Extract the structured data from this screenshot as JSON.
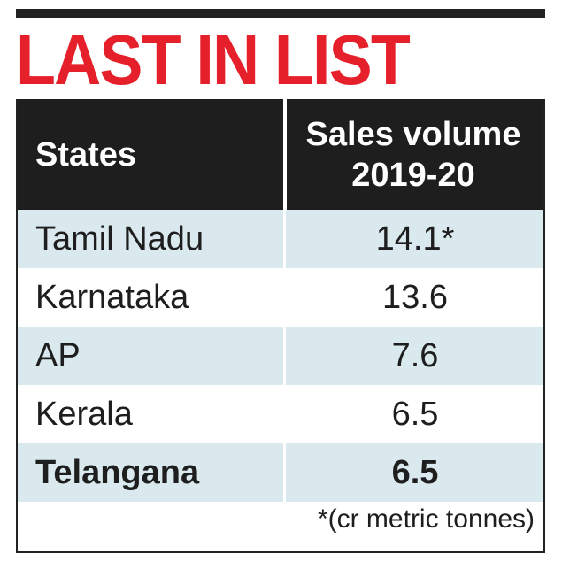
{
  "title": "LAST IN LIST",
  "chart_data": {
    "type": "table",
    "columns": [
      "States",
      "Sales volume 2019-20"
    ],
    "header": {
      "col1": "States",
      "col2_line1": "Sales volume",
      "col2_line2": "2019-20"
    },
    "rows": [
      {
        "state": "Tamil Nadu",
        "value": "14.1*"
      },
      {
        "state": "Karnataka",
        "value": "13.6"
      },
      {
        "state": "AP",
        "value": "7.6"
      },
      {
        "state": "Kerala",
        "value": "6.5"
      },
      {
        "state": "Telangana",
        "value": "6.5"
      }
    ],
    "footnote": "*(cr metric tonnes)"
  },
  "colors": {
    "title": "#e5202a",
    "header_bg": "#1e1e1e",
    "row_shade": "#d9e9ee"
  }
}
